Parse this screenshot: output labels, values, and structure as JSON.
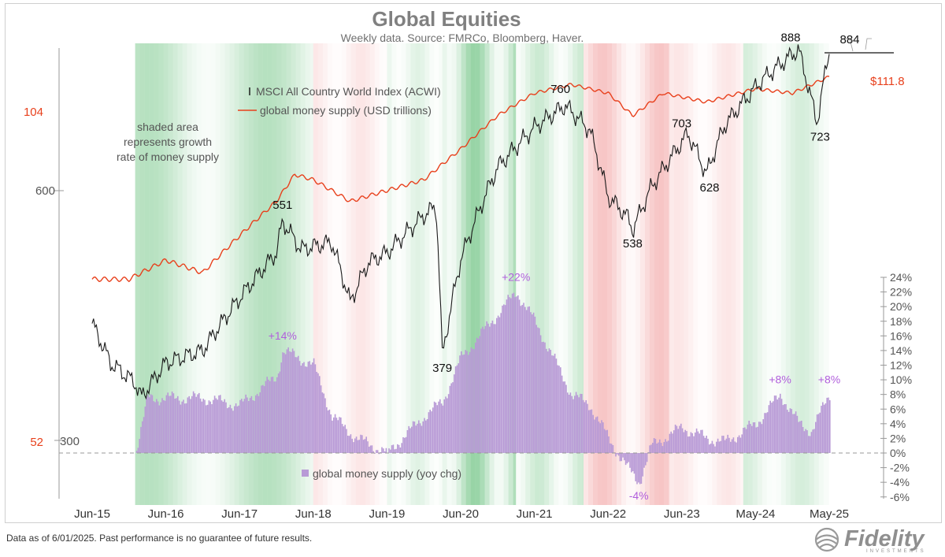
{
  "chart_data": {
    "type": "line",
    "title": "Global Equities",
    "subtitle": "Weekly data.  Source: FMRCo, Bloomberg, Haver.",
    "x_ticks": [
      "Jun-15",
      "Jun-16",
      "Jun-17",
      "Jun-18",
      "Jun-19",
      "Jun-20",
      "Jun-21",
      "Jun-22",
      "Jun-23",
      "May-24",
      "May-25"
    ],
    "y_left_outer_ticks": [
      "104",
      "52"
    ],
    "y_left_inner_ticks": [
      "600",
      "300"
    ],
    "y_right_ticks": [
      "24%",
      "22%",
      "20%",
      "18%",
      "16%",
      "14%",
      "12%",
      "10%",
      "8%",
      "6%",
      "4%",
      "2%",
      "0%",
      "-2%",
      "-4%",
      "-6%"
    ],
    "y_right_range": [
      -6,
      24
    ],
    "note": "shaded area\nrepresents growth\nrate of money supply",
    "colors": {
      "acwi": "#1a1a1a",
      "money": "#e8401c",
      "bars": "#b89ad6",
      "green": "#2ea84a",
      "red": "#e85a5a",
      "pct_label": "#b15fdc",
      "axis_left_outer": "#e8401c"
    },
    "series": [
      {
        "name": "MSCI All Country World Index (ACWI)",
        "points": [
          [
            "2015-06",
            415
          ],
          [
            "2015-09",
            372
          ],
          [
            "2016-01",
            352
          ],
          [
            "2016-02",
            338
          ],
          [
            "2016-06",
            372
          ],
          [
            "2016-12",
            385
          ],
          [
            "2017-06",
            445
          ],
          [
            "2017-12",
            505
          ],
          [
            "2018-01",
            551
          ],
          [
            "2018-04",
            510
          ],
          [
            "2018-09",
            520
          ],
          [
            "2018-12",
            440
          ],
          [
            "2019-03",
            492
          ],
          [
            "2019-06",
            505
          ],
          [
            "2019-12",
            560
          ],
          [
            "2020-02",
            575
          ],
          [
            "2020-03",
            379
          ],
          [
            "2020-06",
            495
          ],
          [
            "2020-12",
            640
          ],
          [
            "2021-06",
            715
          ],
          [
            "2021-11",
            760
          ],
          [
            "2022-03",
            710
          ],
          [
            "2022-06",
            590
          ],
          [
            "2022-09",
            560
          ],
          [
            "2022-10",
            538
          ],
          [
            "2023-01",
            605
          ],
          [
            "2023-07",
            703
          ],
          [
            "2023-10",
            628
          ],
          [
            "2024-01",
            720
          ],
          [
            "2024-07",
            815
          ],
          [
            "2025-01",
            888
          ],
          [
            "2025-04",
            723
          ],
          [
            "2025-06",
            884
          ]
        ],
        "labels": [
          {
            "text": "551",
            "date": "2018-01",
            "value": 551
          },
          {
            "text": "379",
            "date": "2020-03",
            "value": 379
          },
          {
            "text": "760",
            "date": "2021-11",
            "value": 760
          },
          {
            "text": "538",
            "date": "2022-10",
            "value": 538
          },
          {
            "text": "703",
            "date": "2023-07",
            "value": 703
          },
          {
            "text": "628",
            "date": "2023-10",
            "value": 628
          },
          {
            "text": "888",
            "date": "2025-01",
            "value": 888
          },
          {
            "text": "723",
            "date": "2025-04",
            "value": 723
          },
          {
            "text": "884",
            "date": "2025-06",
            "value": 884
          }
        ]
      },
      {
        "name": "global money supply (USD trillions)",
        "points": [
          [
            "2015-06",
            73
          ],
          [
            "2015-12",
            73
          ],
          [
            "2016-06",
            76
          ],
          [
            "2016-12",
            74
          ],
          [
            "2017-06",
            80
          ],
          [
            "2017-12",
            86
          ],
          [
            "2018-03",
            91
          ],
          [
            "2018-06",
            90
          ],
          [
            "2018-12",
            86
          ],
          [
            "2019-06",
            88
          ],
          [
            "2019-12",
            90
          ],
          [
            "2020-06",
            96
          ],
          [
            "2020-12",
            103
          ],
          [
            "2021-06",
            108
          ],
          [
            "2021-12",
            110
          ],
          [
            "2022-06",
            108
          ],
          [
            "2022-10",
            103
          ],
          [
            "2023-03",
            108
          ],
          [
            "2023-10",
            106
          ],
          [
            "2024-06",
            109
          ],
          [
            "2024-12",
            108
          ],
          [
            "2025-06",
            111.8
          ]
        ],
        "end_label": "$111.8"
      },
      {
        "name": "global money supply (yoy chg)",
        "type": "bar",
        "unit": "%",
        "points": [
          [
            "2015-06",
            0
          ],
          [
            "2016-01",
            0
          ],
          [
            "2016-03",
            7.5
          ],
          [
            "2016-12",
            7.5
          ],
          [
            "2017-06",
            6.5
          ],
          [
            "2017-12",
            10.5
          ],
          [
            "2018-01",
            14
          ],
          [
            "2018-06",
            12
          ],
          [
            "2018-09",
            5
          ],
          [
            "2019-01",
            2
          ],
          [
            "2019-06",
            0
          ],
          [
            "2019-12",
            5
          ],
          [
            "2020-03",
            7
          ],
          [
            "2020-06",
            13
          ],
          [
            "2021-01",
            20
          ],
          [
            "2021-03",
            22
          ],
          [
            "2021-06",
            18
          ],
          [
            "2021-12",
            8
          ],
          [
            "2022-03",
            6.5
          ],
          [
            "2022-06",
            2
          ],
          [
            "2022-09",
            -2
          ],
          [
            "2022-11",
            -4
          ],
          [
            "2023-01",
            1
          ],
          [
            "2023-06",
            3.5
          ],
          [
            "2023-10",
            2
          ],
          [
            "2024-01",
            1.5
          ],
          [
            "2024-06",
            4
          ],
          [
            "2024-10",
            8
          ],
          [
            "2025-01",
            4
          ],
          [
            "2025-03",
            3
          ],
          [
            "2025-06",
            8
          ]
        ],
        "labels": [
          {
            "text": "+14%",
            "date": "2018-01",
            "value": 14
          },
          {
            "text": "+22%",
            "date": "2021-03",
            "value": 22
          },
          {
            "text": "-4%",
            "date": "2022-11",
            "value": -4
          },
          {
            "text": "+8%",
            "date": "2024-10",
            "value": 8
          },
          {
            "text": "+8%",
            "date": "2025-06",
            "value": 8
          }
        ]
      }
    ],
    "shading": [
      [
        "2015-06",
        "2016-01",
        "none",
        0
      ],
      [
        "2016-01",
        "2018-06",
        "green",
        0.35
      ],
      [
        "2018-06",
        "2019-06",
        "red",
        0.15
      ],
      [
        "2019-06",
        "2020-03",
        "green",
        0.15
      ],
      [
        "2020-03",
        "2021-03",
        "green",
        0.5
      ],
      [
        "2021-03",
        "2022-02",
        "green",
        0.25
      ],
      [
        "2022-02",
        "2023-04",
        "red",
        0.35
      ],
      [
        "2023-04",
        "2024-04",
        "red",
        0.15
      ],
      [
        "2024-04",
        "2025-06",
        "green",
        0.2
      ]
    ],
    "legend_placement": "top-left"
  },
  "footer": "Data as of 6/01/2025. Past performance is no guarantee of future results.",
  "brand": {
    "name": "Fidelity",
    "sub": "INVESTMENTS"
  }
}
